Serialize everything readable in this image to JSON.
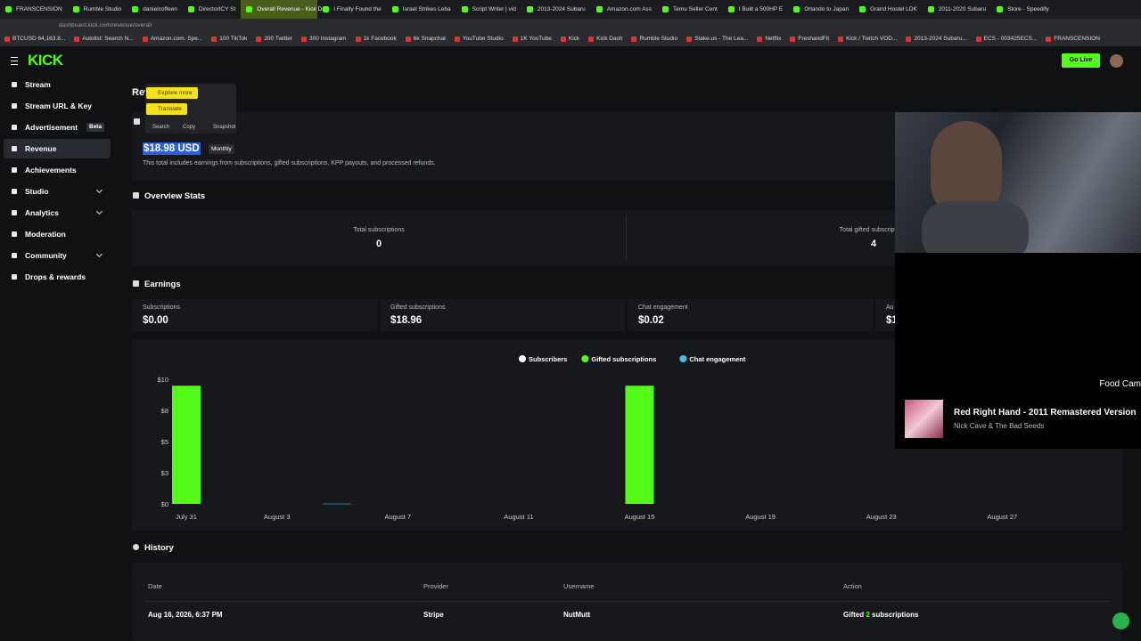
{
  "browser": {
    "tabs": [
      "FRANSCENSION",
      "Rumble Studio",
      "danielcoffeen",
      "DirectorICY St",
      "Overall Revenue - Kick Da",
      "I Finally Found the",
      "Israel Strikes Leba",
      "Script Writer | vid",
      "2013-2024 Subaru",
      "Amazon.com Ass",
      "Temu Seller Cent",
      "I Built a 500HP E",
      "Orlando to Japan",
      "Grand Hostel LDK",
      "2011-2020 Subaru",
      "Store - Speedify"
    ],
    "active_tab": 4,
    "url": "dashboard.kick.com/revenue/overall",
    "bookmarks": [
      "BTCUSD 64,163.8...",
      "Autolist: Search N...",
      "Amazon.com. Spe...",
      "100 TikTok",
      "200 Twitter",
      "300 Instagram",
      "1k Facebook",
      "6k Snapchat",
      "YouTube Studio",
      "1K YouTube",
      "Kick",
      "Kick Dash",
      "Rumble Studio",
      "Stake.us - The Lea...",
      "Netflix",
      "FreshandFit",
      "Kick / Twitch VOD...",
      "2013-2024 Subaru...",
      "ECS - 003425ECS...",
      "FRANSCENSION"
    ]
  },
  "header": {
    "logo": "KICK",
    "go_live": "Go Live"
  },
  "sidebar": {
    "items": [
      {
        "label": "Stream"
      },
      {
        "label": "Stream URL & Key"
      },
      {
        "label": "Advertisement",
        "badge": "Beta"
      },
      {
        "label": "Revenue",
        "active": true
      },
      {
        "label": "Achievements"
      },
      {
        "label": "Studio",
        "expandable": true
      },
      {
        "label": "Analytics",
        "expandable": true
      },
      {
        "label": "Moderation"
      },
      {
        "label": "Community",
        "expandable": true
      },
      {
        "label": "Drops & rewards"
      }
    ]
  },
  "popup": {
    "explore": "Explore more",
    "translate": "Translate",
    "actions": [
      "Search",
      "Copy",
      "Snapshot"
    ]
  },
  "revenue": {
    "title": "Revenue",
    "amount": "$18.98 USD",
    "period": "Monthly",
    "description": "This total includes earnings from subscriptions, gifted subscriptions, KPP payouts, and processed refunds."
  },
  "overview": {
    "title": "Overview Stats",
    "stats": [
      {
        "label": "Total subscriptions",
        "value": 0
      },
      {
        "label": "Total gifted subscriptions",
        "value": 4
      }
    ]
  },
  "earnings": {
    "title": "Earnings",
    "cards": [
      {
        "label": "Subscriptions",
        "value": "$0.00"
      },
      {
        "label": "Gifted subscriptions",
        "value": "$18.96"
      },
      {
        "label": "Chat engagement",
        "value": "$0.02"
      },
      {
        "label": "Au",
        "value": "$1"
      }
    ]
  },
  "chart": {
    "type": "bar",
    "categories": [
      "July 31",
      null,
      null,
      "August 3",
      null,
      null,
      null,
      "August 7",
      null,
      null,
      null,
      "August 11",
      null,
      null,
      null,
      "August 15",
      null,
      null,
      null,
      "August 19",
      null,
      null,
      null,
      "August 23",
      null,
      null,
      null,
      "August 27",
      null,
      null,
      null
    ],
    "series": [
      {
        "name": "Subscribers",
        "color": "#ffffff",
        "values": [
          0,
          0,
          0,
          0,
          0,
          0,
          0,
          0,
          0,
          0,
          0,
          0,
          0,
          0,
          0,
          0,
          0,
          0,
          0,
          0,
          0,
          0,
          0,
          0,
          0,
          0,
          0,
          0,
          0,
          0,
          0
        ]
      },
      {
        "name": "Gifted subscriptions",
        "color": "#53fc18",
        "values": [
          9.48,
          0,
          0,
          0,
          0,
          0,
          0,
          0,
          0,
          0,
          0,
          0,
          0,
          0,
          0,
          9.48,
          0,
          0,
          0,
          0,
          0,
          0,
          0,
          0,
          0,
          0,
          0,
          0,
          0,
          0,
          0
        ]
      },
      {
        "name": "Chat engagement",
        "color": "#3ec1e8",
        "values": [
          0,
          0,
          0,
          0,
          0,
          0.02,
          0,
          0,
          0,
          0,
          0,
          0,
          0,
          0,
          0,
          0,
          0,
          0,
          0,
          0,
          0,
          0,
          0,
          0,
          0,
          0,
          0,
          0,
          0,
          0,
          0
        ]
      }
    ],
    "ylim": [
      0,
      10
    ],
    "yticks": [
      {
        "value": 10,
        "label": "$10"
      },
      {
        "value": 7.5,
        "label": "$8"
      },
      {
        "value": 5,
        "label": "$5"
      },
      {
        "value": 2.5,
        "label": "$3"
      },
      {
        "value": 0,
        "label": "$0"
      }
    ],
    "grid": false
  },
  "history": {
    "title": "History",
    "columns": [
      "Date",
      "Provider",
      "Username",
      "Action"
    ],
    "rows": [
      [
        "Aug 16, 2026, 6:37 PM",
        "Stripe",
        "NutMutt",
        {
          "prefix": "Gifted",
          "count": "2",
          "suffix": "subscriptions"
        }
      ]
    ]
  },
  "overlay": {
    "label": "Food Cam",
    "track": "Red Right Hand - 2011 Remastered Version",
    "artist": "Nick Cave & The Bad Seeds"
  }
}
